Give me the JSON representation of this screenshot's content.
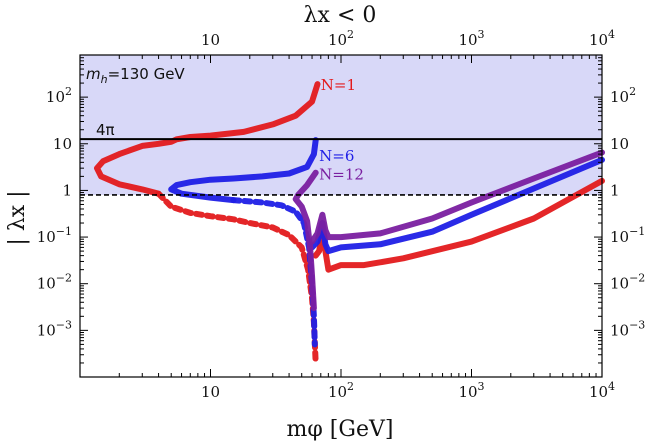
{
  "chart_data": {
    "type": "line",
    "title": "λx < 0",
    "xlabel": "mφ [GeV]",
    "ylabel": "| λx |",
    "xscale": "log",
    "yscale": "log",
    "xlim": [
      1,
      10000
    ],
    "ylim": [
      0.0001,
      800
    ],
    "top_axis_title": "λx < 0",
    "x_ticks": [
      {
        "value": 10,
        "base": "10",
        "exp": ""
      },
      {
        "value": 100,
        "base": "10",
        "exp": "2"
      },
      {
        "value": 1000,
        "base": "10",
        "exp": "3"
      },
      {
        "value": 10000,
        "base": "10",
        "exp": "4"
      }
    ],
    "y_ticks": [
      {
        "value": 100,
        "base": "10",
        "exp": "2"
      },
      {
        "value": 10,
        "base": "10",
        "exp": ""
      },
      {
        "value": 1,
        "base": "1",
        "exp": ""
      },
      {
        "value": 0.1,
        "base": "10",
        "exp": "−1"
      },
      {
        "value": 0.01,
        "base": "10",
        "exp": "−2"
      },
      {
        "value": 0.001,
        "base": "10",
        "exp": "−3"
      }
    ],
    "annotations": {
      "mass": "mh=130 GeV",
      "mass_subscript": "h",
      "mass_rest": "=130 GeV",
      "four_pi": "4π",
      "four_pi_value": 12.57,
      "perturbative_line_value": 0.8
    },
    "shaded_region": {
      "ymin": 0.8,
      "ymax": 800,
      "color": "#d8d8f8"
    },
    "series": [
      {
        "name": "N=1",
        "label": "N=1",
        "color": "#e31a1c",
        "label_at": [
          70,
          180
        ],
        "upper": [
          [
            66,
            190
          ],
          [
            60,
            80
          ],
          [
            45,
            40
          ],
          [
            30,
            26
          ],
          [
            18,
            18
          ],
          [
            10,
            15
          ],
          [
            7,
            14
          ],
          [
            5.5,
            12.5
          ],
          [
            5,
            11
          ],
          [
            4,
            10
          ],
          [
            3,
            9
          ],
          [
            2,
            6
          ],
          [
            1.5,
            4.2
          ],
          [
            1.35,
            3
          ],
          [
            1.45,
            2
          ],
          [
            2,
            1.35
          ],
          [
            3,
            1.05
          ],
          [
            4,
            0.85
          ]
        ],
        "lower": [
          [
            4,
            0.85
          ],
          [
            5,
            0.45
          ],
          [
            7,
            0.33
          ],
          [
            10,
            0.28
          ],
          [
            15,
            0.24
          ],
          [
            20,
            0.2
          ],
          [
            30,
            0.16
          ],
          [
            40,
            0.11
          ],
          [
            50,
            0.06
          ],
          [
            56,
            0.02
          ],
          [
            60,
            0.005
          ],
          [
            62,
            0.0015
          ],
          [
            64,
            0.0002
          ]
        ],
        "lower_dashed": true,
        "high_mass": [
          [
            64,
            0.04
          ],
          [
            68,
            0.05
          ],
          [
            72,
            0.12
          ],
          [
            76,
            0.05
          ],
          [
            80,
            0.02
          ],
          [
            100,
            0.025
          ],
          [
            150,
            0.025
          ],
          [
            300,
            0.035
          ],
          [
            1000,
            0.08
          ],
          [
            3000,
            0.25
          ],
          [
            10000,
            1.6
          ]
        ]
      },
      {
        "name": "N=6",
        "label": "N=6",
        "color": "#1f1fe6",
        "label_at": [
          68,
          5.5
        ],
        "upper": [
          [
            64,
            12
          ],
          [
            62,
            6
          ],
          [
            55,
            3.2
          ],
          [
            40,
            2.3
          ],
          [
            25,
            2
          ],
          [
            15,
            1.8
          ],
          [
            10,
            1.7
          ],
          [
            7,
            1.5
          ],
          [
            5.5,
            1.3
          ],
          [
            5,
            1.05
          ],
          [
            6,
            0.85
          ],
          [
            10,
            0.7
          ],
          [
            15,
            0.62
          ]
        ],
        "lower": [
          [
            15,
            0.62
          ],
          [
            25,
            0.55
          ],
          [
            35,
            0.48
          ],
          [
            45,
            0.35
          ],
          [
            52,
            0.2
          ],
          [
            57,
            0.06
          ],
          [
            60,
            0.01
          ],
          [
            62,
            0.002
          ],
          [
            63,
            0.0005
          ]
        ],
        "lower_dashed": true,
        "high_mass": [
          [
            60,
            0.06
          ],
          [
            66,
            0.08
          ],
          [
            72,
            0.2
          ],
          [
            76,
            0.07
          ],
          [
            80,
            0.05
          ],
          [
            100,
            0.06
          ],
          [
            200,
            0.07
          ],
          [
            500,
            0.13
          ],
          [
            1000,
            0.3
          ],
          [
            3000,
            1.1
          ],
          [
            10000,
            4.5
          ]
        ]
      },
      {
        "name": "N=12",
        "label": "N=12",
        "color": "#7a1fa0",
        "label_at": [
          68,
          2.2
        ],
        "upper": [
          [
            64,
            2.4
          ],
          [
            55,
            1.3
          ],
          [
            47,
            0.8
          ],
          [
            45,
            0.65
          ],
          [
            50,
            0.45
          ],
          [
            55,
            0.22
          ],
          [
            58,
            0.06
          ],
          [
            60,
            0.015
          ],
          [
            62,
            0.003
          ]
        ],
        "lower": [],
        "lower_dashed": true,
        "high_mass": [
          [
            60,
            0.08
          ],
          [
            66,
            0.12
          ],
          [
            72,
            0.3
          ],
          [
            76,
            0.14
          ],
          [
            80,
            0.1
          ],
          [
            100,
            0.1
          ],
          [
            200,
            0.12
          ],
          [
            500,
            0.25
          ],
          [
            1000,
            0.55
          ],
          [
            3000,
            1.8
          ],
          [
            10000,
            6.5
          ]
        ]
      }
    ]
  }
}
